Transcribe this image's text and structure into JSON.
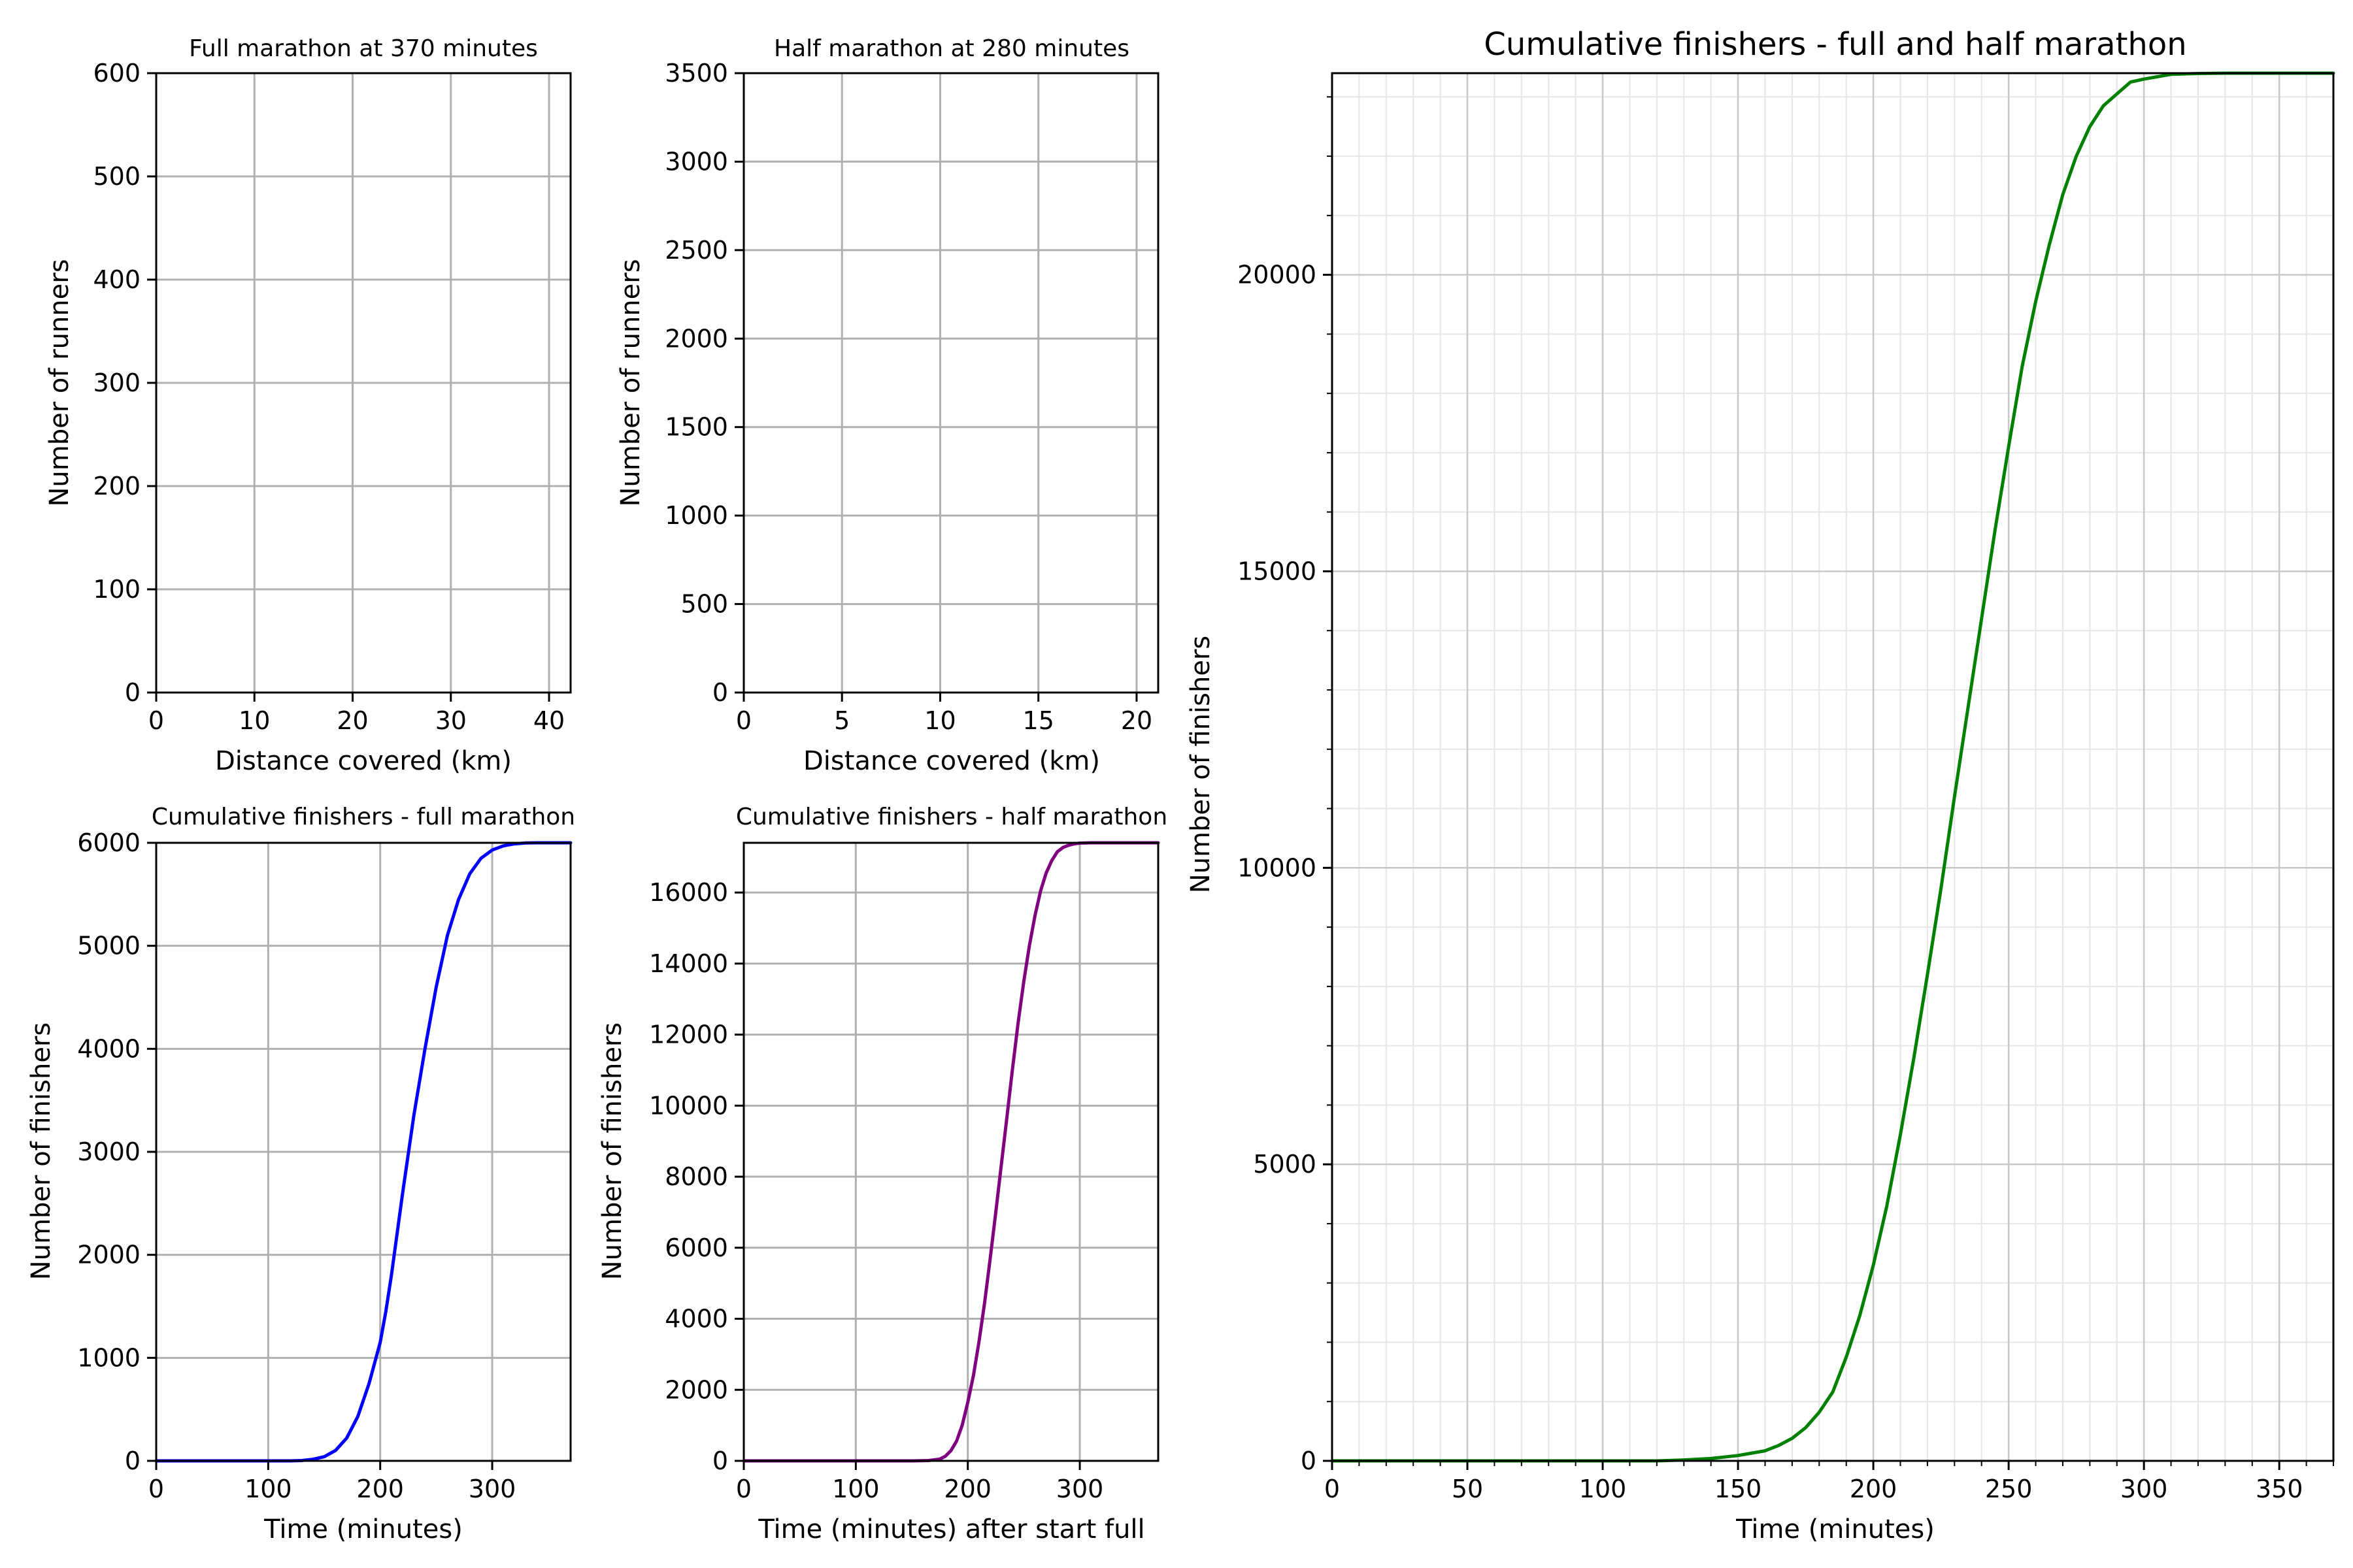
{
  "chart_data": [
    {
      "id": "full-at-370",
      "type": "line",
      "title": "Full marathon at 370 minutes",
      "xlabel": "Distance covered (km)",
      "ylabel": "Number of runners",
      "xlim": [
        0,
        42.195
      ],
      "ylim": [
        0,
        600
      ],
      "xticks": [
        0,
        10,
        20,
        30,
        40
      ],
      "yticks": [
        0,
        100,
        200,
        300,
        400,
        500,
        600
      ],
      "grid": true,
      "minor_grid": false,
      "series": []
    },
    {
      "id": "half-at-280",
      "type": "line",
      "title": "Half marathon at 280 minutes",
      "xlabel": "Distance covered (km)",
      "ylabel": "Number of runners",
      "xlim": [
        0,
        21.1
      ],
      "ylim": [
        0,
        3500
      ],
      "xticks": [
        0,
        5,
        10,
        15,
        20
      ],
      "yticks": [
        0,
        500,
        1000,
        1500,
        2000,
        2500,
        3000,
        3500
      ],
      "grid": true,
      "minor_grid": false,
      "series": []
    },
    {
      "id": "cum-full",
      "type": "line",
      "title": "Cumulative finishers - full marathon",
      "xlabel": "Time (minutes)",
      "ylabel": "Number of finishers",
      "xlim": [
        0,
        370
      ],
      "ylim": [
        0,
        6000
      ],
      "xticks": [
        0,
        100,
        200,
        300
      ],
      "yticks": [
        0,
        1000,
        2000,
        3000,
        4000,
        5000,
        6000
      ],
      "grid": true,
      "minor_grid": false,
      "series": [
        {
          "color": "#0000ff",
          "x": [
            0,
            100,
            120,
            130,
            140,
            150,
            160,
            170,
            180,
            190,
            200,
            205,
            210,
            220,
            230,
            240,
            250,
            260,
            270,
            280,
            290,
            300,
            310,
            320,
            330,
            340,
            370
          ],
          "y": [
            0,
            0,
            0,
            3,
            15,
            40,
            100,
            220,
            430,
            750,
            1150,
            1450,
            1800,
            2600,
            3350,
            4000,
            4600,
            5100,
            5450,
            5700,
            5850,
            5930,
            5970,
            5990,
            5998,
            6000,
            6000
          ]
        }
      ]
    },
    {
      "id": "cum-half",
      "type": "line",
      "title": "Cumulative finishers - half marathon",
      "xlabel": "Time (minutes) after start full",
      "ylabel": "Number of finishers",
      "xlim": [
        0,
        370
      ],
      "ylim": [
        0,
        17400
      ],
      "xticks": [
        0,
        100,
        200,
        300
      ],
      "yticks": [
        0,
        2000,
        4000,
        6000,
        8000,
        10000,
        12000,
        14000,
        16000
      ],
      "grid": true,
      "minor_grid": false,
      "series": [
        {
          "color": "#800080",
          "x": [
            0,
            150,
            165,
            175,
            180,
            185,
            190,
            195,
            200,
            205,
            210,
            215,
            220,
            225,
            230,
            235,
            240,
            245,
            250,
            255,
            260,
            265,
            270,
            275,
            280,
            285,
            290,
            295,
            300,
            310,
            320,
            370
          ],
          "y": [
            0,
            0,
            10,
            50,
            130,
            290,
            560,
            1000,
            1650,
            2400,
            3350,
            4450,
            5700,
            7000,
            8350,
            9700,
            11050,
            12350,
            13500,
            14500,
            15350,
            16050,
            16550,
            16900,
            17150,
            17270,
            17330,
            17370,
            17390,
            17400,
            17400,
            17400
          ]
        }
      ]
    },
    {
      "id": "cum-combined",
      "type": "line",
      "title": "Cumulative finishers - full and half marathon",
      "xlabel": "Time (minutes)",
      "ylabel": "Number of finishers",
      "xlim": [
        0,
        370
      ],
      "ylim": [
        0,
        23400
      ],
      "xticks": [
        0,
        50,
        100,
        150,
        200,
        250,
        300,
        350
      ],
      "yticks": [
        0,
        5000,
        10000,
        15000,
        20000
      ],
      "grid": true,
      "minor_grid": true,
      "series": [
        {
          "color": "#008000",
          "x": [
            0,
            100,
            120,
            130,
            140,
            150,
            160,
            165,
            170,
            175,
            180,
            185,
            190,
            195,
            200,
            205,
            210,
            215,
            220,
            225,
            230,
            235,
            240,
            245,
            250,
            255,
            260,
            265,
            270,
            275,
            280,
            285,
            290,
            295,
            300,
            310,
            320,
            330,
            340,
            370
          ],
          "y": [
            0,
            0,
            0,
            15,
            40,
            90,
            170,
            260,
            380,
            560,
            820,
            1160,
            1750,
            2450,
            3300,
            4300,
            5500,
            6800,
            8200,
            9650,
            11200,
            12700,
            14200,
            15700,
            17100,
            18450,
            19550,
            20500,
            21350,
            22000,
            22500,
            22850,
            23050,
            23250,
            23300,
            23380,
            23395,
            23400,
            23400,
            23400
          ]
        }
      ]
    }
  ]
}
